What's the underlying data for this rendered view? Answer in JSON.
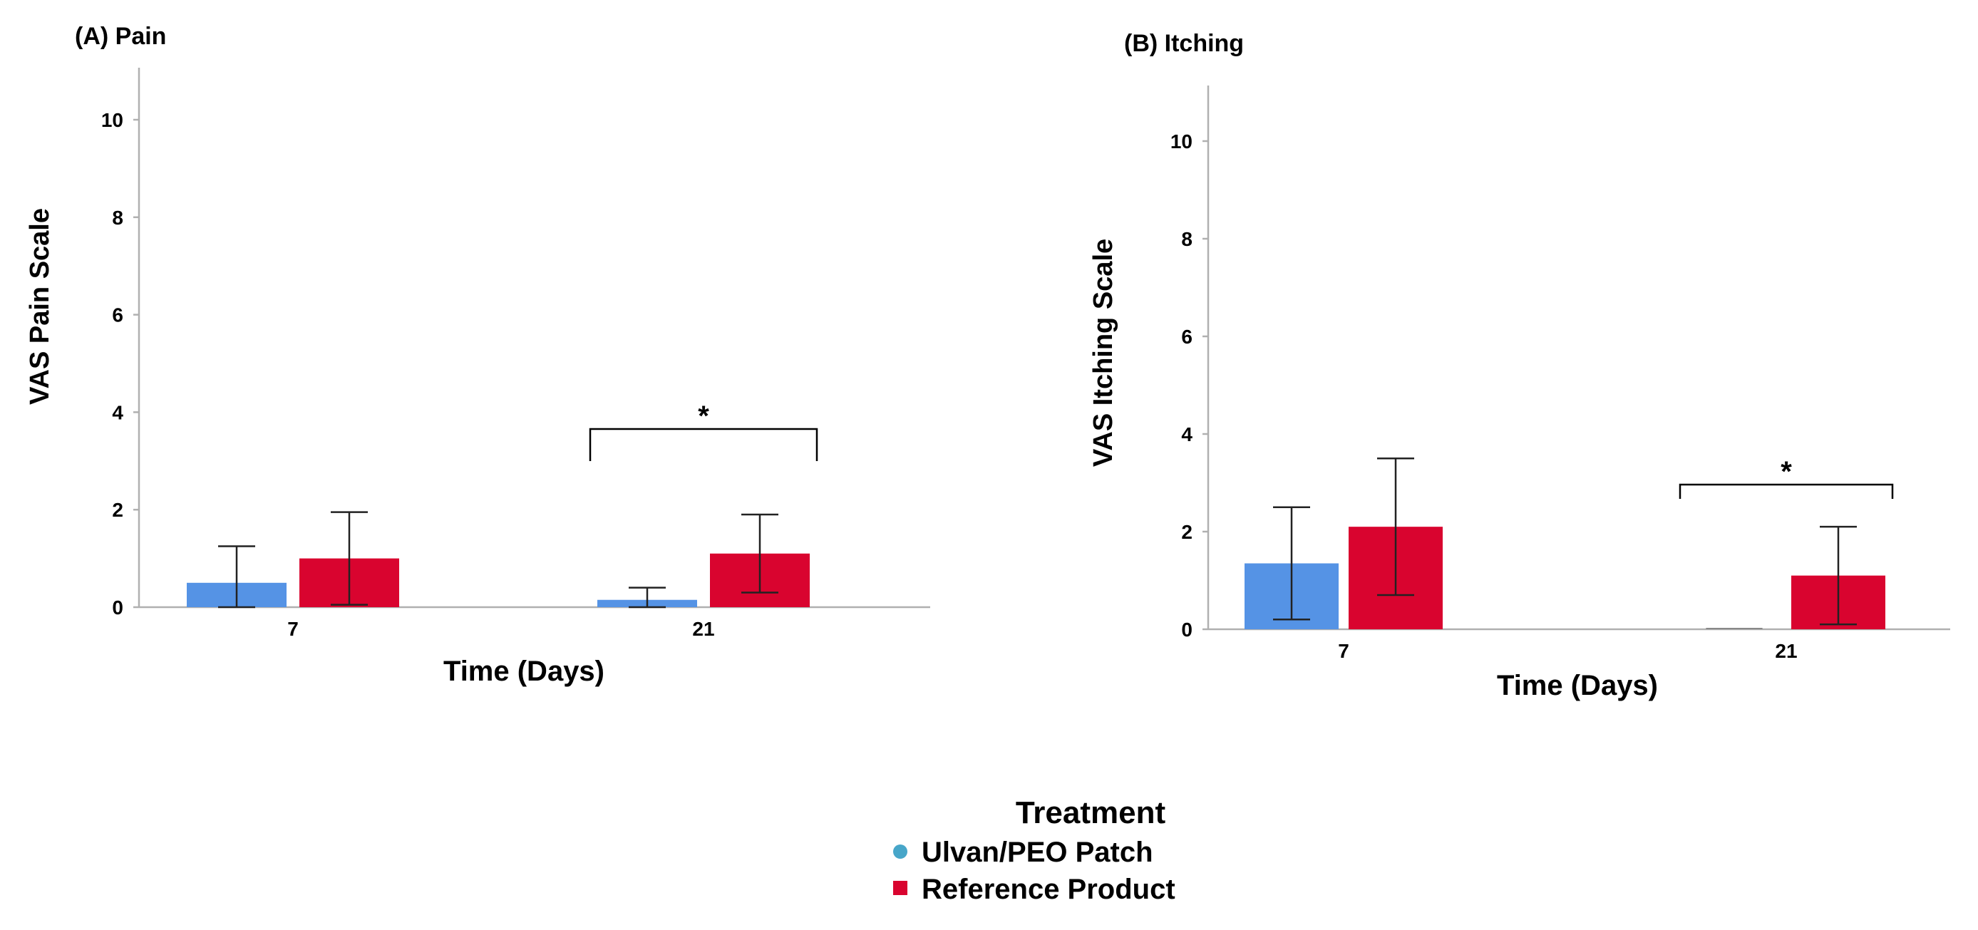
{
  "chart_data": [
    {
      "type": "bar",
      "title": "(A) Pain",
      "xlabel": "Time (Days)",
      "ylabel": "VAS Pain Scale",
      "categories": [
        "7",
        "21"
      ],
      "ylim": [
        0,
        11
      ],
      "yticks": [
        "0",
        "2",
        "4",
        "6",
        "8",
        "10"
      ],
      "series": [
        {
          "name": "Ulvan/PEO Patch",
          "color": "#5593e5",
          "values": [
            0.5,
            0.15
          ],
          "err_low": [
            0.0,
            0.0
          ],
          "err_high": [
            1.25,
            0.4
          ]
        },
        {
          "name": "Reference Product",
          "color": "#d9042f",
          "values": [
            1.0,
            1.1
          ],
          "err_low": [
            0.05,
            0.3
          ],
          "err_high": [
            1.95,
            1.9
          ]
        }
      ],
      "significance": [
        {
          "category": "21",
          "label": "*"
        }
      ]
    },
    {
      "type": "bar",
      "title": "(B) Itching",
      "xlabel": "Time (Days)",
      "ylabel": "VAS Itching Scale",
      "categories": [
        "7",
        "21"
      ],
      "ylim": [
        0,
        11
      ],
      "yticks": [
        "0",
        "2",
        "4",
        "6",
        "8",
        "10"
      ],
      "series": [
        {
          "name": "Ulvan/PEO Patch",
          "color": "#5593e5",
          "values": [
            1.35,
            0.0
          ],
          "err_low": [
            0.2,
            0.0
          ],
          "err_high": [
            2.5,
            0.0
          ]
        },
        {
          "name": "Reference Product",
          "color": "#d9042f",
          "values": [
            2.1,
            1.1
          ],
          "err_low": [
            0.7,
            0.1
          ],
          "err_high": [
            3.5,
            2.1
          ]
        }
      ],
      "significance": [
        {
          "category": "21",
          "label": "*"
        }
      ]
    }
  ],
  "legend": {
    "title": "Treatment",
    "items": [
      {
        "label": "Ulvan/PEO Patch",
        "marker": "circle",
        "color": "#47a6c9"
      },
      {
        "label": "Reference Product",
        "marker": "square",
        "color": "#d9042f"
      }
    ]
  }
}
